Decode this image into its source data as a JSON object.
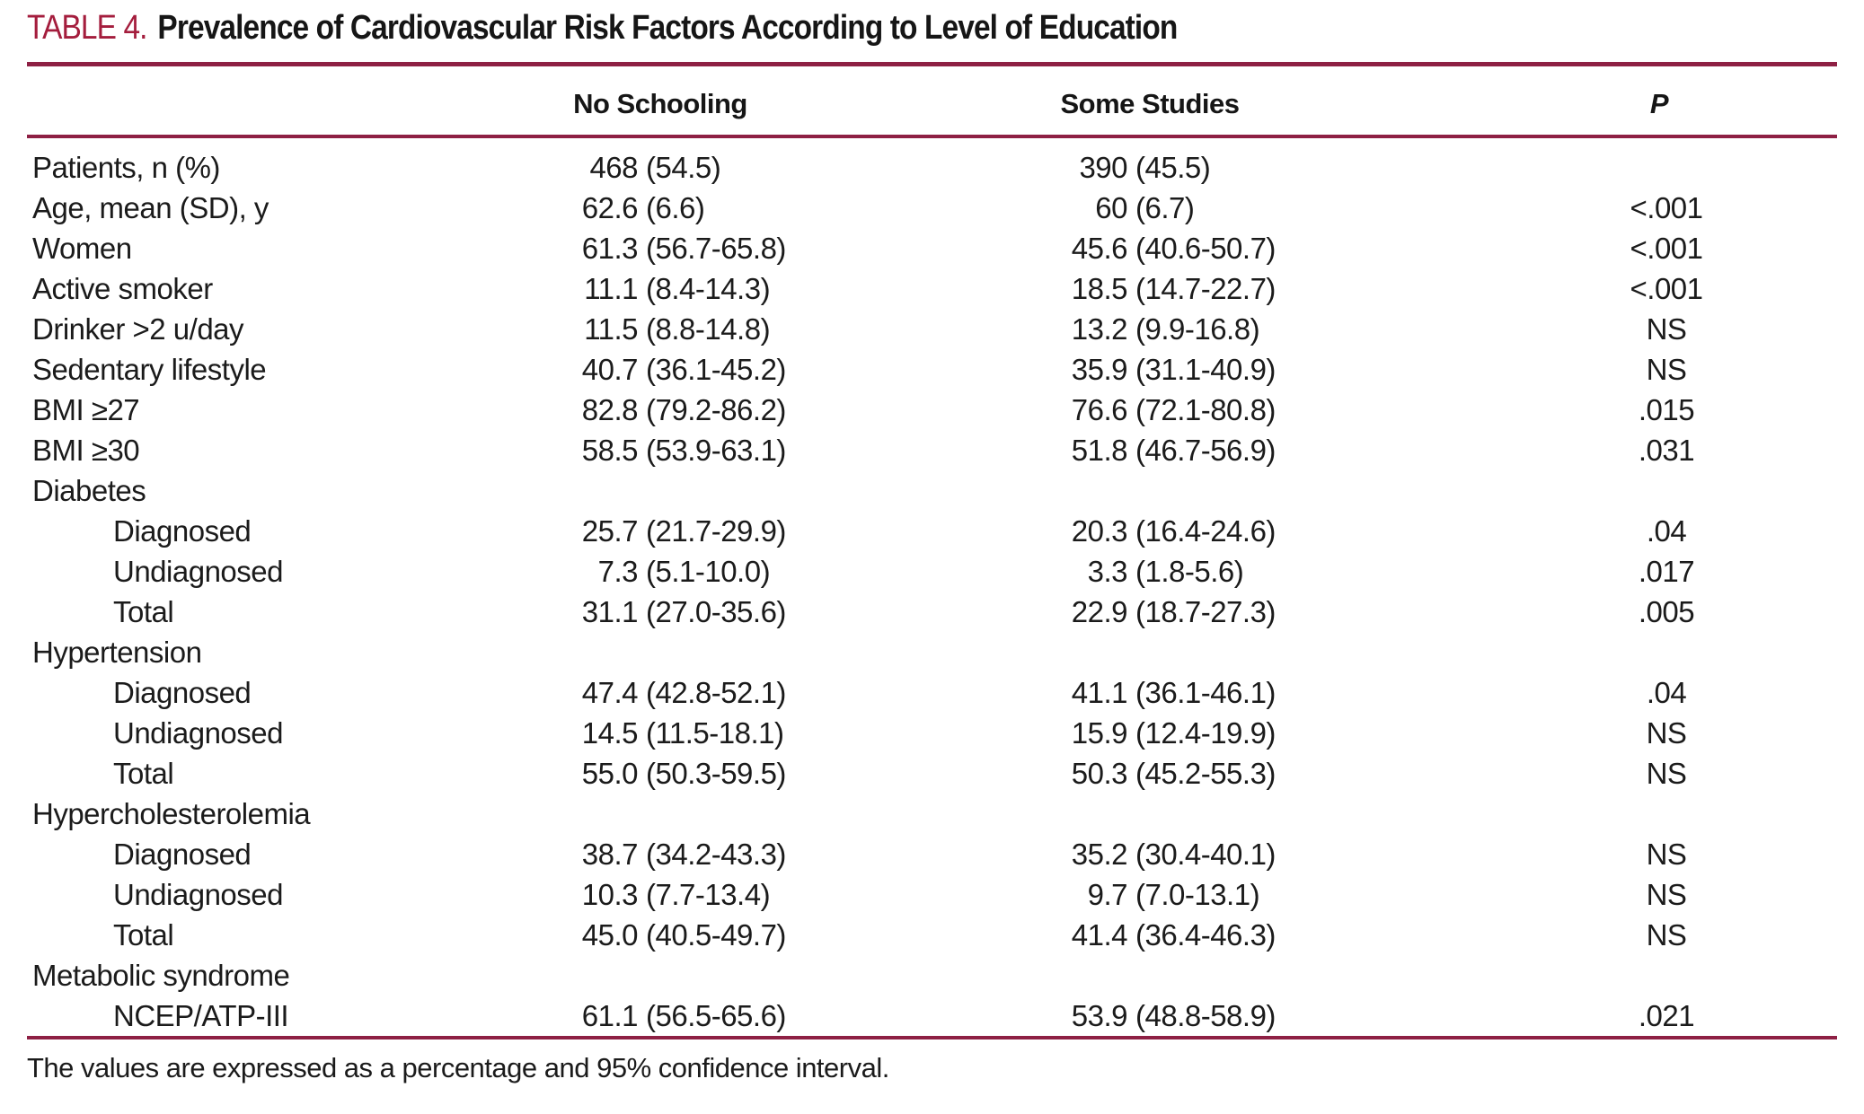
{
  "title": {
    "label": "TABLE 4.",
    "text": "Prevalence of Cardiovascular Risk Factors According to Level of Education"
  },
  "columns": {
    "row_header": "",
    "no_schooling": "No Schooling",
    "some_studies": "Some Studies",
    "p": "P"
  },
  "rows": [
    {
      "type": "item",
      "label": "Patients, n (%)",
      "no_schooling": "468 (54.5)",
      "some_studies": "390 (45.5)",
      "p": ""
    },
    {
      "type": "item",
      "label": "Age, mean (SD), y",
      "no_schooling": "62.6 (6.6)",
      "some_studies": "60 (6.7)",
      "p": "<.001"
    },
    {
      "type": "item",
      "label": "Women",
      "no_schooling": "61.3 (56.7-65.8)",
      "some_studies": "45.6 (40.6-50.7)",
      "p": "<.001"
    },
    {
      "type": "item",
      "label": "Active smoker",
      "no_schooling": "11.1 (8.4-14.3)",
      "some_studies": "18.5 (14.7-22.7)",
      "p": "<.001"
    },
    {
      "type": "item",
      "label": "Drinker >2 u/day",
      "no_schooling": "11.5 (8.8-14.8)",
      "some_studies": "13.2 (9.9-16.8)",
      "p": "NS"
    },
    {
      "type": "item",
      "label": "Sedentary lifestyle",
      "no_schooling": "40.7 (36.1-45.2)",
      "some_studies": "35.9 (31.1-40.9)",
      "p": "NS"
    },
    {
      "type": "item",
      "label": "BMI ≥27",
      "no_schooling": "82.8 (79.2-86.2)",
      "some_studies": "76.6 (72.1-80.8)",
      "p": ".015"
    },
    {
      "type": "item",
      "label": "BMI ≥30",
      "no_schooling": "58.5 (53.9-63.1)",
      "some_studies": "51.8 (46.7-56.9)",
      "p": ".031"
    },
    {
      "type": "section",
      "label": "Diabetes",
      "no_schooling": "",
      "some_studies": "",
      "p": ""
    },
    {
      "type": "subitem",
      "label": "Diagnosed",
      "no_schooling": "25.7 (21.7-29.9)",
      "some_studies": "20.3 (16.4-24.6)",
      "p": ".04"
    },
    {
      "type": "subitem",
      "label": "Undiagnosed",
      "no_schooling": "7.3 (5.1-10.0)",
      "some_studies": "3.3 (1.8-5.6)",
      "p": ".017"
    },
    {
      "type": "subitem",
      "label": "Total",
      "no_schooling": "31.1 (27.0-35.6)",
      "some_studies": "22.9 (18.7-27.3)",
      "p": ".005"
    },
    {
      "type": "section",
      "label": "Hypertension",
      "no_schooling": "",
      "some_studies": "",
      "p": ""
    },
    {
      "type": "subitem",
      "label": "Diagnosed",
      "no_schooling": "47.4 (42.8-52.1)",
      "some_studies": "41.1 (36.1-46.1)",
      "p": ".04"
    },
    {
      "type": "subitem",
      "label": "Undiagnosed",
      "no_schooling": "14.5 (11.5-18.1)",
      "some_studies": "15.9 (12.4-19.9)",
      "p": "NS"
    },
    {
      "type": "subitem",
      "label": "Total",
      "no_schooling": "55.0 (50.3-59.5)",
      "some_studies": "50.3 (45.2-55.3)",
      "p": "NS"
    },
    {
      "type": "section",
      "label": "Hypercholesterolemia",
      "no_schooling": "",
      "some_studies": "",
      "p": ""
    },
    {
      "type": "subitem",
      "label": "Diagnosed",
      "no_schooling": "38.7 (34.2-43.3)",
      "some_studies": "35.2 (30.4-40.1)",
      "p": "NS"
    },
    {
      "type": "subitem",
      "label": "Undiagnosed",
      "no_schooling": "10.3 (7.7-13.4)",
      "some_studies": "9.7 (7.0-13.1)",
      "p": "NS"
    },
    {
      "type": "subitem",
      "label": "Total",
      "no_schooling": "45.0 (40.5-49.7)",
      "some_studies": "41.4 (36.4-46.3)",
      "p": "NS"
    },
    {
      "type": "section",
      "label": "Metabolic syndrome",
      "no_schooling": "",
      "some_studies": "",
      "p": ""
    },
    {
      "type": "subitem",
      "label": "NCEP/ATP-III",
      "no_schooling": "61.1 (56.5-65.6)",
      "some_studies": "53.9 (48.8-58.9)",
      "p": ".021"
    }
  ],
  "footnote": "The values are expressed as a percentage and 95% confidence interval.",
  "colors": {
    "accent": "#a41d3d",
    "rule": "#8e2044",
    "text": "#1b1b1b"
  }
}
